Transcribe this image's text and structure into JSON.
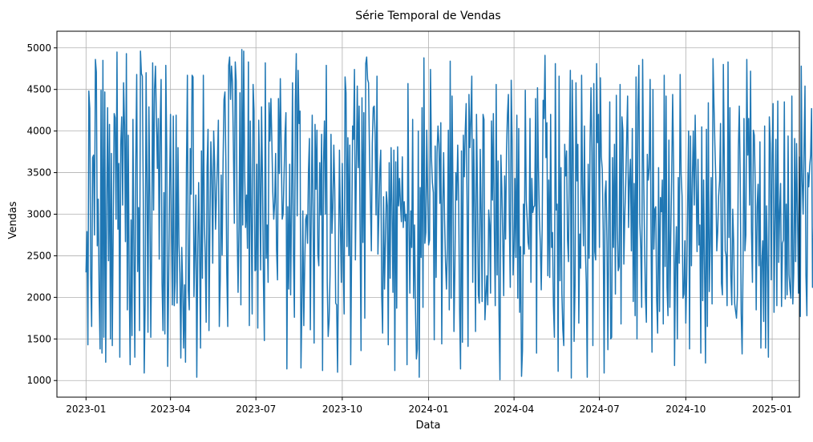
{
  "chart_data": {
    "type": "line",
    "title": "Série Temporal de Vendas",
    "xlabel": "Data",
    "ylabel": "Vendas",
    "grid": true,
    "legend": "none",
    "line_color": "#1f77b4",
    "x_range": [
      "2022-12-01",
      "2025-01-30"
    ],
    "ylim": [
      800,
      5200
    ],
    "x_ticks": [
      "2023-01",
      "2023-04",
      "2023-07",
      "2023-10",
      "2024-01",
      "2024-04",
      "2024-07",
      "2024-10",
      "2025-01"
    ],
    "y_ticks": [
      1000,
      1500,
      2000,
      2500,
      3000,
      3500,
      4000,
      4500,
      5000
    ],
    "series": [
      {
        "x_start": "2023-01-01",
        "x_step": "1 day",
        "values": [
          2300,
          2790,
          1430,
          4480,
          4270,
          2240,
          1650,
          3680,
          3710,
          2750,
          4860,
          4710,
          2620,
          3180,
          2000,
          1380,
          4490,
          1330,
          4850,
          1520,
          4470,
          1220,
          3090,
          4280,
          2440,
          4080,
          1500,
          3730,
          1420,
          2880,
          4210,
          4160,
          2940,
          4950,
          2820,
          3610,
          1280,
          3840,
          4170,
          3110,
          4580,
          4080,
          2670,
          4930,
          1850,
          3950,
          2210,
          1190,
          2930,
          1540,
          4140,
          2590,
          1280,
          3640,
          4680,
          2310,
          3080,
          1600,
          4960,
          4690,
          4660,
          3170,
          1090,
          1920,
          4700,
          3390,
          1580,
          4290,
          3210,
          1520,
          2630,
          4820,
          3050,
          4510,
          4780,
          4150,
          3550,
          4150,
          2460,
          4070,
          4620,
          2170,
          1600,
          3260,
          1560,
          4790,
          3760,
          1170,
          2150,
          3320,
          4200,
          2800,
          1910,
          4180,
          1900,
          2190,
          4190,
          1930,
          3800,
          2640,
          2290,
          1270,
          2600,
          2120,
          1390,
          2150,
          1220,
          3560,
          4670,
          2080,
          1850,
          3790,
          3240,
          4670,
          4650,
          2010,
          2550,
          3230,
          1040,
          2450,
          3380,
          2580,
          1390,
          3760,
          2230,
          4670,
          2920,
          2520,
          1700,
          3570,
          4020,
          1600,
          2870,
          3870,
          3460,
          2410,
          4000,
          3620,
          2820,
          3230,
          3620,
          4130,
          1650,
          2200,
          3470,
          2510,
          3620,
          4380,
          4470,
          3620,
          2290,
          1650,
          4790,
          4890,
          4380,
          4780,
          4590,
          3820,
          2890,
          4830,
          4600,
          2850,
          2060,
          2850,
          4460,
          1910,
          4980,
          2870,
          4960,
          3520,
          2840,
          3230,
          2590,
          4830,
          1660,
          4120,
          2970,
          1800,
          4560,
          4240,
          2320,
          2330,
          3600,
          1630,
          4130,
          3510,
          2330,
          4290,
          3450,
          2210,
          1480,
          4820,
          2470,
          2870,
          2180,
          4340,
          3880,
          4390,
          3870,
          3270,
          2940,
          3140,
          3730,
          2570,
          2210,
          4390,
          3490,
          4630,
          3800,
          2940,
          3000,
          3470,
          3960,
          4220,
          1140,
          3090,
          2100,
          3600,
          2030,
          3140,
          4580,
          2520,
          1760,
          4350,
          4930,
          2980,
          4730,
          4090,
          4240,
          1150,
          1880,
          3040,
          1660,
          2400,
          2940,
          2990,
          2650,
          3520,
          3910,
          1610,
          3060,
          4190,
          2830,
          1450,
          4080,
          3300,
          4010,
          2520,
          2380,
          3620,
          2990,
          3960,
          1120,
          3620,
          4120,
          3000,
          4790,
          2180,
          1530,
          1720,
          2280,
          3960,
          2770,
          3070,
          3830,
          3290,
          1930,
          1910,
          1100,
          2470,
          3770,
          2870,
          2180,
          3610,
          2430,
          1800,
          4650,
          4460,
          2610,
          3920,
          2500,
          3830,
          1190,
          2630,
          4060,
          3900,
          4740,
          2450,
          3540,
          4540,
          3560,
          4300,
          2790,
          1360,
          4400,
          2660,
          4220,
          1750,
          4810,
          4890,
          4620,
          4580,
          3740,
          3160,
          2560,
          3850,
          4280,
          4300,
          3960,
          2990,
          4660,
          2520,
          3000,
          3530,
          3770,
          2040,
          1570,
          3210,
          2100,
          2680,
          3270,
          3100,
          1430,
          3620,
          2230,
          3800,
          3100,
          2060,
          3770,
          1120,
          3630,
          1870,
          3810,
          3100,
          3430,
          3120,
          2910,
          3690,
          2840,
          3150,
          2920,
          3000,
          1190,
          4570,
          2950,
          2050,
          3040,
          2600,
          4140,
          1990,
          2870,
          1870,
          1260,
          1380,
          4000,
          1040,
          3320,
          2480,
          4280,
          1880,
          4880,
          2650,
          2780,
          4010,
          3250,
          2630,
          2690,
          4740,
          3690,
          3380,
          3260,
          1490,
          3820,
          2240,
          3740,
          4060,
          3840,
          3130,
          4100,
          1440,
          3060,
          3740,
          2930,
          2420,
          2100,
          2590,
          4010,
          1850,
          4840,
          1990,
          4420,
          3210,
          1590,
          2360,
          3500,
          3170,
          3830,
          3190,
          1850,
          1140,
          3760,
          1460,
          3950,
          3450,
          3990,
          4330,
          3100,
          1410,
          4440,
          3800,
          4140,
          4660,
          2180,
          3900,
          3060,
          1590,
          4200,
          3320,
          2030,
          1930,
          3780,
          3000,
          1950,
          4200,
          4140,
          1730,
          2010,
          2260,
          1910,
          3050,
          2870,
          2050,
          4120,
          3170,
          4210,
          2810,
          1900,
          4560,
          2270,
          3640,
          1800,
          1010,
          3710,
          3320,
          2700,
          2020,
          3460,
          2700,
          3780,
          4200,
          4440,
          2910,
          2120,
          4610,
          3870,
          2270,
          2550,
          3430,
          2480,
          4190,
          1990,
          4030,
          1820,
          2610,
          1050,
          1360,
          3120,
          2520,
          4490,
          3170,
          2940,
          2660,
          2580,
          4150,
          2180,
          3430,
          3020,
          3090,
          3100,
          4390,
          1330,
          4520,
          3560,
          2960,
          2640,
          2090,
          2860,
          4370,
          4150,
          4910,
          3680,
          4100,
          2260,
          3410,
          2240,
          4200,
          2600,
          2780,
          1900,
          1520,
          4810,
          3050,
          3120,
          1110,
          4660,
          2200,
          3560,
          2040,
          1610,
          1420,
          3840,
          3460,
          3760,
          2690,
          2430,
          3760,
          4730,
          1030,
          4610,
          3790,
          1470,
          2140,
          4580,
          3400,
          3840,
          1690,
          2760,
          2350,
          4670,
          3250,
          2620,
          4060,
          2590,
          2170,
          1040,
          3600,
          2470,
          3860,
          4520,
          3750,
          1420,
          4570,
          2550,
          2450,
          4810,
          3860,
          4200,
          2600,
          4640,
          3690,
          3540,
          2800,
          1090,
          3240,
          3400,
          2670,
          1370,
          2930,
          4350,
          1500,
          1520,
          3680,
          2600,
          3840,
          2040,
          4430,
          2880,
          2320,
          2370,
          4560,
          1680,
          4170,
          4000,
          2400,
          2980,
          3370,
          3910,
          4420,
          2840,
          3400,
          3660,
          2560,
          4030,
          1950,
          3370,
          1780,
          4650,
          1500,
          4280,
          4790,
          2900,
          2590,
          1880,
          4860,
          3560,
          2720,
          2010,
          1700,
          3720,
          3410,
          3550,
          4620,
          2720,
          1340,
          4500,
          2580,
          3060,
          3090,
          1960,
          1570,
          3560,
          1830,
          3200,
          3030,
          3410,
          1680,
          4670,
          2370,
          4420,
          2120,
          1780,
          3890,
          1880,
          2750,
          3480,
          4440,
          3580,
          1180,
          2410,
          2850,
          1500,
          3440,
          2410,
          4680,
          3490,
          3220,
          1990,
          2040,
          2680,
          1690,
          2270,
          3160,
          4000,
          1380,
          3940,
          2380,
          3420,
          4000,
          3110,
          4190,
          3400,
          2550,
          3660,
          2630,
          2870,
          1330,
          4050,
          1960,
          3410,
          2310,
          1210,
          4020,
          1650,
          4340,
          2070,
          2640,
          3440,
          1920,
          4870,
          4330,
          3830,
          3410,
          2560,
          2790,
          3220,
          3400,
          4090,
          2170,
          2030,
          4800,
          3650,
          2560,
          2500,
          1900,
          4830,
          2720,
          4280,
          2260,
          1910,
          3060,
          2660,
          1930,
          1840,
          1750,
          2030,
          3770,
          4300,
          3430,
          1810,
          1320,
          2390,
          4150,
          2560,
          2750,
          4860,
          3710,
          4150,
          3110,
          4720,
          2790,
          2180,
          4010,
          3950,
          3340,
          1850,
          3090,
          3360,
          2380,
          3870,
          1390,
          2420,
          2680,
          1710,
          4060,
          1390,
          3100,
          2400,
          1280,
          4170,
          3850,
          2210,
          3720,
          4330,
          1820,
          2870,
          3900,
          1900,
          4360,
          2420,
          3040,
          3370,
          1890,
          2650,
          2690,
          4350,
          1980,
          3120,
          2030,
          3940,
          2270,
          2100,
          1990,
          4420,
          1920,
          2300,
          3910,
          2430,
          3850,
          3010,
          2050,
          3690,
          1770,
          4780,
          3400,
          3000,
          3800,
          4540,
          2270,
          1780,
          3500,
          3330,
          3580,
          3710,
          4270,
          2120,
          2720,
          3530,
          3070,
          2580,
          3540,
          3770,
          2150,
          3090,
          1500,
          3730,
          1250,
          4140,
          4410,
          3670,
          2020,
          2420,
          2810,
          3260,
          4210,
          1580,
          4580,
          3140,
          4780,
          1230,
          3930,
          4450,
          2880,
          3300,
          3600,
          3810,
          3440,
          2040,
          4040,
          2900,
          2650,
          4300,
          3310,
          4380,
          2390,
          1980,
          2730,
          2570,
          2500,
          4490,
          4040,
          1110,
          2420,
          1690,
          1510,
          2890,
          4570,
          2240,
          2790,
          2470,
          4290,
          1080,
          1550,
          1110,
          3550,
          3170,
          1740,
          3620,
          1550,
          3250,
          2480,
          3180,
          3540,
          2470,
          4000,
          2420,
          2890,
          3960,
          4230,
          2690,
          1250,
          3710,
          3580,
          1420,
          3380,
          1390,
          4140,
          4500,
          2800,
          4130,
          3600,
          3990,
          3950,
          2840,
          1530,
          2710,
          1660,
          3730,
          4310,
          3160,
          4400,
          1410,
          4650,
          1200,
          2120,
          1240,
          1560,
          3000,
          4760,
          2080,
          1230,
          3560,
          2190,
          1310,
          4110,
          4880,
          3840,
          3500,
          4600,
          1830,
          2710,
          3770,
          3030,
          2640,
          3380,
          3650,
          2060,
          3960,
          1690,
          2480,
          2070,
          1800,
          4780,
          3630,
          2660,
          1780,
          3760,
          2140,
          2740,
          4050,
          4000,
          3310,
          2280,
          1990,
          3850,
          2810,
          1210,
          2380,
          4080,
          4590,
          4100,
          2170,
          2030,
          4570,
          4980,
          1890,
          4860,
          2640,
          2960,
          3630,
          3820,
          2350,
          2770,
          3250,
          4640,
          1880,
          2900,
          2570,
          4660,
          2620,
          1680,
          4070,
          2940,
          3740,
          2440,
          3370,
          2130,
          4330,
          3840,
          1810,
          3030,
          1820,
          4740,
          1260,
          2910,
          3730,
          4320,
          3960,
          2560,
          1960,
          3340,
          1140,
          4750,
          4600,
          4470,
          1690,
          2780,
          3200,
          2570,
          2060,
          1080,
          1850,
          4070,
          2320,
          1440,
          2900,
          3730,
          1270,
          3140,
          2650,
          1390,
          3560,
          1490,
          3730,
          3420,
          3910,
          3060,
          3700,
          3220,
          4160,
          2960,
          3130,
          2360,
          1910,
          1830,
          2150,
          1620,
          1910,
          3640,
          3890,
          2090,
          4640,
          4150,
          3530,
          1720,
          3360,
          3510,
          2720,
          1560,
          1980,
          1740,
          2920,
          2360,
          2710,
          3790,
          1590,
          2270,
          3540,
          2010,
          3910,
          3300,
          2870,
          4320,
          3690,
          4390,
          1460,
          3310,
          1980,
          2460,
          1290,
          2260,
          4050,
          2530,
          2050,
          1670,
          2930,
          3830,
          1970,
          1500,
          4330,
          3080,
          1870,
          3000,
          1540,
          3060,
          2290,
          3410,
          4310,
          3240,
          1980,
          4250,
          3160,
          3850,
          1750,
          2550,
          2870,
          2750,
          1600,
          2490,
          2820,
          2700,
          3600,
          2780,
          3470,
          1210,
          3280,
          1790,
          2850,
          1430,
          2540,
          3340,
          3360,
          4370,
          1850,
          3210,
          3120,
          1170,
          4050,
          3460,
          2740,
          1980,
          1550,
          2480,
          3310,
          1430,
          2830,
          2410,
          3060,
          4000,
          3210,
          2510,
          3540,
          4160,
          3390,
          1980,
          4080,
          3520,
          3040,
          4620,
          4580,
          1440,
          2920,
          2060,
          3160,
          1480,
          2790,
          3690,
          1910,
          2300,
          3880,
          4120,
          2840,
          4070,
          3930,
          1460,
          2290,
          2250,
          4050,
          4650,
          3760,
          2070,
          2390,
          1830,
          1400,
          1730,
          2990,
          1810,
          1720,
          3020,
          3580,
          4370,
          2040,
          3740,
          1690,
          3540,
          3190,
          4440,
          1940,
          2090,
          1620,
          4520,
          3530,
          1870,
          2200,
          1730,
          2660,
          1520,
          4290,
          1410,
          1480,
          1920,
          1790,
          3530,
          2520,
          4100,
          3020,
          3320,
          4150,
          3240,
          2900,
          2840,
          1890,
          4620,
          3510,
          2000,
          2560,
          4830,
          3520,
          3950,
          3110,
          2880,
          1280,
          2340,
          4150,
          2550,
          3960,
          3280,
          1620,
          1630
        ]
      }
    ]
  }
}
